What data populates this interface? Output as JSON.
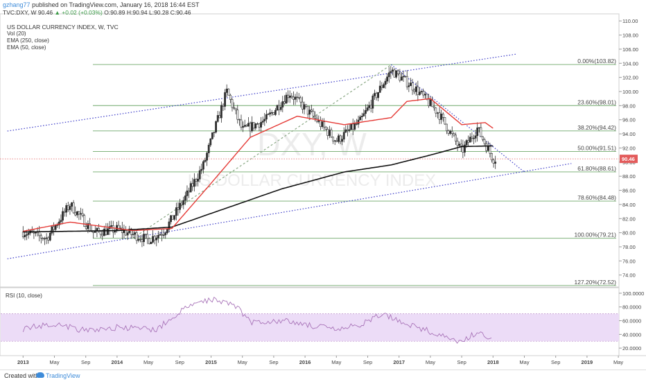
{
  "header": {
    "user": "gzhang77",
    "published": "published on TradingView.com, January 16, 2018 16:44 EST",
    "symbol_line": "TVC:DXY, W  90.46",
    "change": "▲ +0.02 (+0.03%)",
    "ohlc": "O:90.89 H:90.94 L:90.28 C:90.46"
  },
  "legend": {
    "title": "US DOLLAR CURRENCY INDEX, W, TVC",
    "items": [
      "Vol (20)",
      "EMA (250, close)",
      "EMA (50, close)"
    ]
  },
  "watermark": {
    "ticker": "DXY, W",
    "name": "US DOLLAR CURRENCY INDEX"
  },
  "rsi_label": "RSI (10, close)",
  "footer": {
    "created": "Created with",
    "brand": "TradingView"
  },
  "colors": {
    "candle_up": "#2e2e2e",
    "candle_down": "#ffffff",
    "ema50": "#e53935",
    "ema250": "#111111",
    "fib": "#6fa86a",
    "channel": "#3a3ac8",
    "rsi": "#a873b8",
    "rsi_band": "#ecdcf7",
    "last_price": "#e35b5b"
  },
  "chart_data": [
    {
      "type": "candlestick",
      "title": "US DOLLAR CURRENCY INDEX, W, TVC",
      "y_axis_ticks": [
        "110.00",
        "108.00",
        "106.00",
        "104.00",
        "102.00",
        "100.00",
        "98.00",
        "96.00",
        "94.00",
        "92.00",
        "90.00",
        "88.00",
        "86.00",
        "84.00",
        "82.00",
        "80.00",
        "78.00",
        "76.00",
        "74.00"
      ],
      "ylim": [
        72.5,
        111
      ],
      "last_price": 90.46,
      "x_axis_labels": [
        "2013",
        "May",
        "Sep",
        "2014",
        "May",
        "Sep",
        "2015",
        "May",
        "Sep",
        "2016",
        "May",
        "Sep",
        "2017",
        "May",
        "Sep",
        "2018",
        "May",
        "Sep",
        "2019",
        "May"
      ],
      "price_anchor_points": [
        [
          "2013-01",
          80.1
        ],
        [
          "2013-04",
          79.2
        ],
        [
          "2013-07",
          84.0
        ],
        [
          "2013-10",
          80.0
        ],
        [
          "2014-01",
          80.5
        ],
        [
          "2014-05",
          79.0
        ],
        [
          "2014-07",
          80.2
        ],
        [
          "2014-10",
          85.5
        ],
        [
          "2014-12",
          89.5
        ],
        [
          "2015-03",
          100.0
        ],
        [
          "2015-05",
          94.5
        ],
        [
          "2015-08",
          96.0
        ],
        [
          "2015-11",
          99.8
        ],
        [
          "2016-02",
          96.5
        ],
        [
          "2016-05",
          93.0
        ],
        [
          "2016-08",
          95.7
        ],
        [
          "2016-12",
          103.0
        ],
        [
          "2017-03",
          100.5
        ],
        [
          "2017-06",
          97.0
        ],
        [
          "2017-09",
          91.5
        ],
        [
          "2017-11",
          94.8
        ],
        [
          "2018-01",
          90.46
        ]
      ],
      "ema50_anchor_points": [
        [
          "2013-01",
          80.2
        ],
        [
          "2013-07",
          81.5
        ],
        [
          "2014-03",
          80.3
        ],
        [
          "2014-08",
          80.6
        ],
        [
          "2015-01",
          87.0
        ],
        [
          "2015-06",
          93.5
        ],
        [
          "2015-12",
          96.5
        ],
        [
          "2016-06",
          95.3
        ],
        [
          "2016-12",
          96.3
        ],
        [
          "2017-02",
          98.6
        ],
        [
          "2017-05",
          99.0
        ],
        [
          "2017-09",
          95.3
        ],
        [
          "2017-12",
          95.6
        ],
        [
          "2018-01",
          94.8
        ]
      ],
      "ema250_anchor_points": [
        [
          "2013-01",
          80.1
        ],
        [
          "2014-01",
          80.3
        ],
        [
          "2014-08",
          80.8
        ],
        [
          "2015-03",
          83.5
        ],
        [
          "2015-10",
          86.2
        ],
        [
          "2016-06",
          88.6
        ],
        [
          "2016-12",
          89.6
        ],
        [
          "2017-05",
          91.0
        ],
        [
          "2017-09",
          92.2
        ],
        [
          "2018-01",
          92.3
        ]
      ],
      "fibonacci_levels": [
        {
          "label": "0.00%(103.82)",
          "value": 103.82
        },
        {
          "label": "23.60%(98.01)",
          "value": 98.01
        },
        {
          "label": "38.20%(94.42)",
          "value": 94.42
        },
        {
          "label": "50.00%(91.51)",
          "value": 91.51
        },
        {
          "label": "61.80%(88.61)",
          "value": 88.61
        },
        {
          "label": "78.60%(84.48)",
          "value": 84.48
        },
        {
          "label": "100.00%(79.21)",
          "value": 79.21
        },
        {
          "label": "127.20%(72.52)",
          "value": 72.52
        }
      ],
      "channel_upper": [
        [
          "2012-11",
          94.4
        ],
        [
          "2018-04",
          105.3
        ]
      ],
      "channel_lower": [
        [
          "2012-11",
          76.3
        ],
        [
          "2018-11",
          89.8
        ]
      ],
      "downtrend_line": [
        [
          "2016-12",
          103.8
        ],
        [
          "2018-05",
          88.6
        ]
      ],
      "fib_diagonal": [
        [
          "2014-03",
          79.2
        ],
        [
          "2016-12",
          103.8
        ]
      ]
    },
    {
      "type": "line",
      "title": "RSI (10, close)",
      "y_axis_ticks": [
        "100.0000",
        "80.0000",
        "60.0000",
        "40.0000",
        "20.0000"
      ],
      "ylim": [
        10,
        105
      ],
      "band": [
        30,
        70
      ],
      "rsi_anchor_points": [
        [
          "2013-01",
          48
        ],
        [
          "2013-05",
          56
        ],
        [
          "2013-09",
          45
        ],
        [
          "2014-01",
          50
        ],
        [
          "2014-06",
          47
        ],
        [
          "2014-10",
          80
        ],
        [
          "2015-01",
          92
        ],
        [
          "2015-04",
          84
        ],
        [
          "2015-06",
          58
        ],
        [
          "2015-10",
          60
        ],
        [
          "2016-01",
          55
        ],
        [
          "2016-05",
          46
        ],
        [
          "2016-08",
          54
        ],
        [
          "2016-11",
          70
        ],
        [
          "2017-01",
          60
        ],
        [
          "2017-05",
          44
        ],
        [
          "2017-09",
          27
        ],
        [
          "2017-11",
          45
        ],
        [
          "2018-01",
          30
        ]
      ]
    }
  ]
}
